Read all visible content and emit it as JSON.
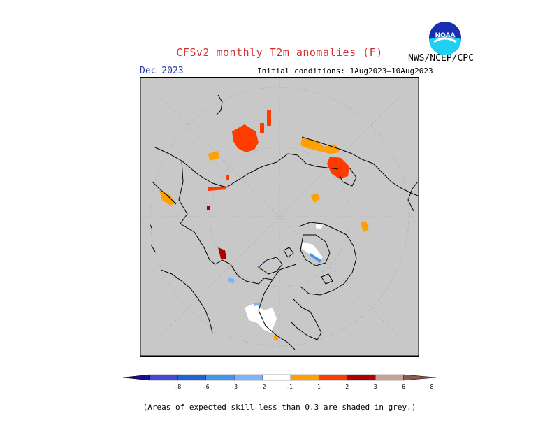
{
  "title": "CFSv2 monthly T2m anomalies (F)",
  "month": "Dec 2023",
  "initial_conditions": "Initial conditions: 1Aug2023–10Aug2023",
  "agency": "NWS/NCEP/CPC",
  "logo": {
    "text": "NOAA",
    "colors": {
      "top": "#1a2fb0",
      "bottom": "#1fd0f0",
      "ring": "#ffffff"
    }
  },
  "footnote": "(Areas of expected skill less than 0.3 are shaded in grey.)",
  "map": {
    "projection": "north-polar-stereographic",
    "background_color": "#c8c8c8",
    "coast_color": "#000000"
  },
  "colorbar": {
    "boundaries": [
      "-8",
      "-6",
      "-3",
      "-2",
      "-1",
      "1",
      "2",
      "3",
      "6",
      "8"
    ],
    "colors": [
      "#1c0f8c",
      "#4646d8",
      "#1e64d2",
      "#3c96ee",
      "#78b4ff",
      "#ffffff",
      "#ffa000",
      "#ff3c00",
      "#aa0000",
      "#c8a096",
      "#8c5a4b"
    ]
  },
  "anomaly_regions": [
    {
      "name": "siberia-red",
      "color": "#ff3c00"
    },
    {
      "name": "alaska-orange",
      "color": "#ffa000"
    },
    {
      "name": "alaska-red",
      "color": "#ff3c00"
    },
    {
      "name": "scandinavia-white",
      "color": "#ffffff"
    },
    {
      "name": "scandinavia-blue",
      "color": "#78b4ff"
    },
    {
      "name": "china-orange",
      "color": "#ffa000"
    },
    {
      "name": "china-darkred",
      "color": "#aa0000"
    },
    {
      "name": "greenland-white",
      "color": "#ffffff"
    },
    {
      "name": "canada-white",
      "color": "#ffffff"
    },
    {
      "name": "canada-blue",
      "color": "#78b4ff"
    }
  ]
}
